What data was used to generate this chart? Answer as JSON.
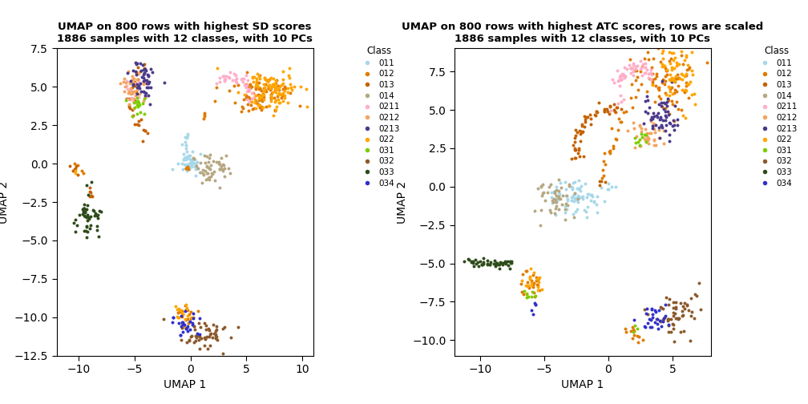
{
  "title1": "UMAP on 800 rows with highest SD scores\n1886 samples with 12 classes, with 10 PCs",
  "title2": "UMAP on 800 rows with highest ATC scores, rows are scaled\n1886 samples with 12 classes, with 10 PCs",
  "xlabel": "UMAP 1",
  "ylabel": "UMAP 2",
  "classes": [
    "011",
    "012",
    "013",
    "014",
    "0211",
    "0212",
    "0213",
    "022",
    "031",
    "032",
    "033",
    "034"
  ],
  "colors": {
    "011": "#A8D8EA",
    "012": "#E07B00",
    "013": "#C46200",
    "014": "#B5A882",
    "0211": "#FFAEC9",
    "0212": "#F4A460",
    "0213": "#4B3A8C",
    "022": "#FFA500",
    "031": "#7CCD00",
    "032": "#8B5A2B",
    "033": "#2E4B1A",
    "034": "#3030CC"
  },
  "plot1_xlim": [
    -12,
    11
  ],
  "plot1_ylim": [
    -12.5,
    7.5
  ],
  "plot2_xlim": [
    -12,
    8
  ],
  "plot2_ylim": [
    -11,
    9
  ],
  "point_size": 8,
  "alpha": 1.0
}
